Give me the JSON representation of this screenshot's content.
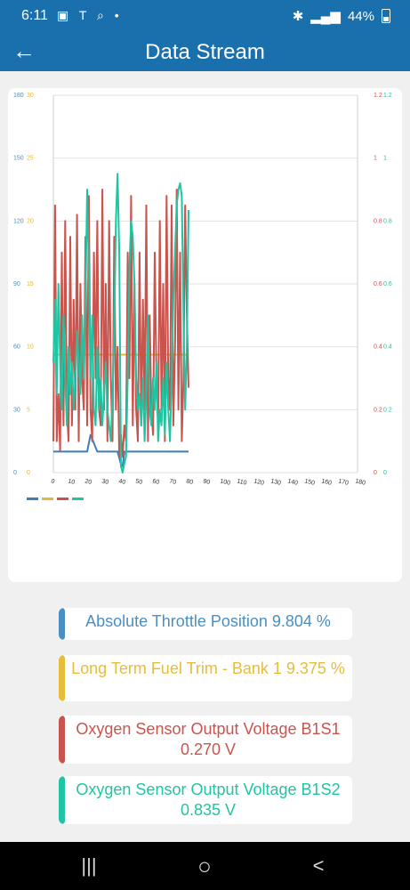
{
  "status_bar": {
    "time": "6:11",
    "battery": "44%"
  },
  "app_bar": {
    "title": "Data Stream"
  },
  "chart_data": {
    "type": "line",
    "x_ticks": [
      0,
      10,
      20,
      30,
      40,
      50,
      60,
      70,
      80,
      90,
      100,
      110,
      120,
      130,
      140,
      150,
      160,
      170,
      180
    ],
    "xlim": [
      0,
      180
    ],
    "grid": true,
    "legend_position": "bottom-left",
    "axes": [
      {
        "side": "left-outer",
        "color": "#4a90c2",
        "ylim": [
          0,
          180
        ],
        "ticks": [
          0,
          30,
          60,
          90,
          120,
          150,
          180
        ]
      },
      {
        "side": "left-inner",
        "color": "#e2b83c",
        "ylim": [
          0,
          30
        ],
        "ticks": [
          0,
          5,
          10,
          15,
          20,
          25,
          30
        ]
      },
      {
        "side": "right-inner",
        "color": "#c9544d",
        "ylim": [
          0,
          1.2
        ],
        "ticks": [
          0,
          0.2,
          0.4,
          0.6,
          0.8,
          1,
          1.2
        ]
      },
      {
        "side": "right-outer",
        "color": "#1fc5a2",
        "ylim": [
          0,
          1.2
        ],
        "ticks": [
          0,
          0.2,
          0.4,
          0.6,
          0.8,
          1,
          1.2
        ]
      }
    ],
    "series": [
      {
        "axis": 0,
        "color": "#3d7db8",
        "x": [
          0,
          4,
          8,
          12,
          16,
          18,
          20,
          22,
          24,
          26,
          28,
          30,
          32,
          34,
          36,
          38,
          40,
          41,
          42,
          44,
          46,
          48,
          50,
          52,
          54,
          56,
          58,
          60,
          62,
          64,
          66,
          68,
          70,
          72,
          74,
          76,
          78,
          80
        ],
        "y": [
          10,
          10,
          10,
          10,
          10,
          10,
          10,
          18,
          14,
          10,
          10,
          10,
          10,
          10,
          10,
          10,
          4,
          3,
          10,
          10,
          10,
          10,
          10,
          10,
          10,
          10,
          10,
          10,
          10,
          10,
          10,
          10,
          10,
          10,
          10,
          10,
          10,
          10
        ]
      },
      {
        "axis": 1,
        "color": "#e2b83c",
        "x": [
          0,
          10,
          20,
          30,
          40,
          50,
          60,
          70,
          80
        ],
        "y": [
          9.375,
          9.375,
          9.375,
          9.375,
          9.375,
          9.375,
          9.375,
          9.375,
          9.375
        ]
      },
      {
        "axis": 2,
        "color": "#c9544d",
        "x": [
          0,
          1,
          2,
          3,
          4,
          5,
          6,
          7,
          8,
          9,
          10,
          11,
          12,
          13,
          14,
          15,
          16,
          17,
          18,
          19,
          20,
          21,
          22,
          23,
          24,
          25,
          26,
          27,
          28,
          29,
          30,
          31,
          32,
          33,
          34,
          35,
          36,
          37,
          38,
          39,
          40,
          41,
          42,
          43,
          44,
          45,
          46,
          47,
          48,
          49,
          50,
          51,
          52,
          53,
          54,
          55,
          56,
          57,
          58,
          59,
          60,
          61,
          62,
          63,
          64,
          65,
          66,
          67,
          68,
          69,
          70,
          71,
          72,
          73,
          74,
          75,
          76,
          77,
          78,
          79,
          80
        ],
        "y": [
          0.1,
          0.85,
          0.1,
          0.25,
          0.07,
          0.7,
          0.15,
          0.8,
          0.2,
          0.1,
          0.75,
          0.15,
          0.55,
          0.2,
          0.82,
          0.1,
          0.6,
          0.3,
          0.2,
          0.75,
          0.15,
          0.88,
          0.2,
          0.1,
          0.7,
          0.3,
          0.8,
          0.2,
          0.15,
          0.9,
          0.2,
          0.6,
          0.1,
          0.8,
          0.3,
          0.1,
          0.75,
          0.2,
          0.4,
          0.05,
          0.12,
          0.05,
          0.15,
          0.1,
          0.7,
          0.3,
          0.88,
          0.15,
          0.6,
          0.2,
          0.1,
          0.7,
          0.15,
          0.55,
          0.2,
          0.85,
          0.1,
          0.5,
          0.2,
          0.12,
          0.7,
          0.3,
          0.15,
          0.8,
          0.2,
          0.6,
          0.1,
          0.88,
          0.3,
          0.2,
          0.85,
          0.15,
          0.4,
          0.9,
          0.2,
          0.7,
          0.1,
          0.3,
          0.85,
          0.5,
          0.27
        ]
      },
      {
        "axis": 3,
        "color": "#1fc5a2",
        "x": [
          0,
          1,
          2,
          3,
          4,
          5,
          6,
          7,
          8,
          9,
          10,
          11,
          12,
          13,
          14,
          15,
          16,
          17,
          18,
          19,
          20,
          21,
          22,
          23,
          24,
          25,
          26,
          27,
          28,
          29,
          30,
          31,
          32,
          33,
          34,
          35,
          36,
          37,
          38,
          39,
          40,
          41,
          42,
          43,
          44,
          45,
          46,
          47,
          48,
          49,
          50,
          51,
          52,
          53,
          54,
          55,
          56,
          57,
          58,
          59,
          60,
          61,
          62,
          63,
          64,
          65,
          66,
          67,
          68,
          69,
          70,
          71,
          72,
          73,
          74,
          75,
          76,
          77,
          78,
          79,
          80
        ],
        "y": [
          0.35,
          0.55,
          0.25,
          0.6,
          0.35,
          0.2,
          0.5,
          0.3,
          0.15,
          0.4,
          0.25,
          0.35,
          0.2,
          0.3,
          0.45,
          0.35,
          0.25,
          0.5,
          0.3,
          0.55,
          0.9,
          0.65,
          0.3,
          0.5,
          0.2,
          0.15,
          0.4,
          0.2,
          0.3,
          0.15,
          0.25,
          0.35,
          0.2,
          0.15,
          0.1,
          0.25,
          0.45,
          0.8,
          0.95,
          0.7,
          0.02,
          0.0,
          0.03,
          0.05,
          0.3,
          0.65,
          0.8,
          0.75,
          0.6,
          0.3,
          0.2,
          0.25,
          0.15,
          0.3,
          0.1,
          0.25,
          0.5,
          0.2,
          0.15,
          0.3,
          0.2,
          0.35,
          0.1,
          0.2,
          0.15,
          0.3,
          0.12,
          0.35,
          0.2,
          0.1,
          0.3,
          0.55,
          0.7,
          0.85,
          0.9,
          0.92,
          0.88,
          0.5,
          0.2,
          0.4,
          0.835
        ]
      }
    ]
  },
  "readings": [
    {
      "label": "Absolute Throttle Position 9.804 %",
      "color": "#4a8fc2"
    },
    {
      "label": "Long Term Fuel Trim - Bank 1 9.375 %",
      "color": "#e7bd3c"
    },
    {
      "label": "Oxygen Sensor Output Voltage B1S1 0.270 V",
      "color": "#c9544d"
    },
    {
      "label": "Oxygen Sensor Output Voltage B1S2 0.835 V",
      "color": "#1fc5a2"
    }
  ],
  "nav_bar": {
    "recent": "|||",
    "home": "○",
    "back": "<"
  }
}
